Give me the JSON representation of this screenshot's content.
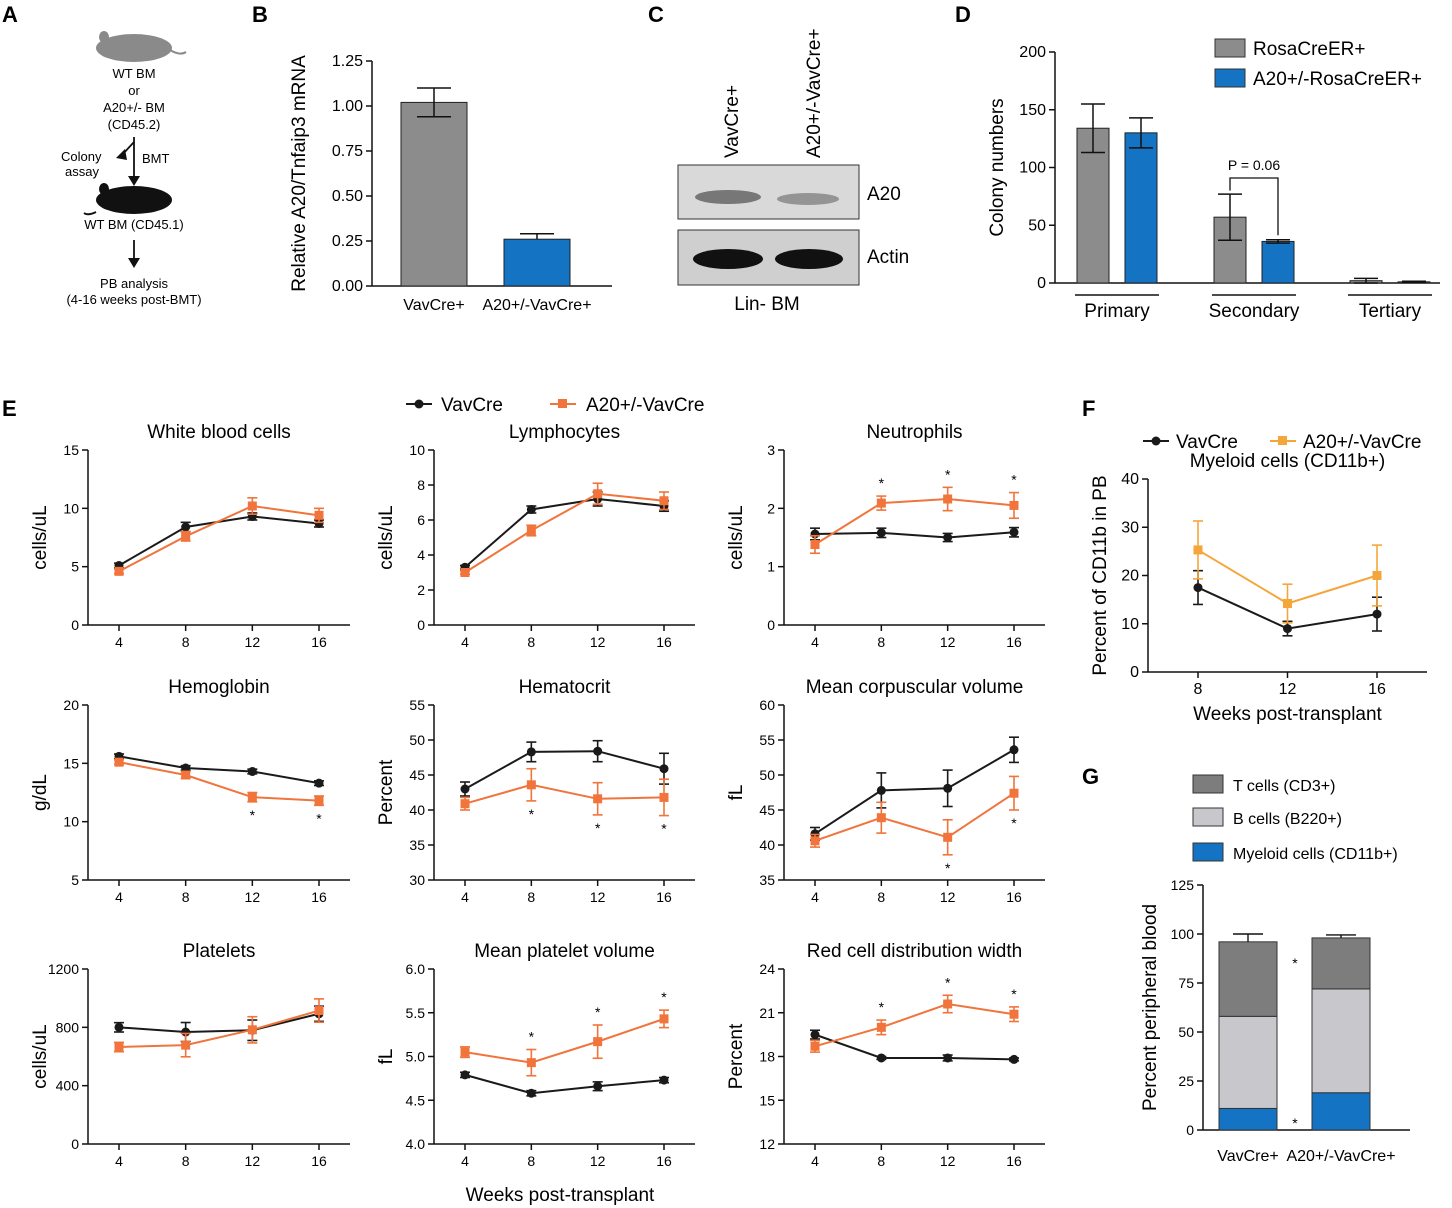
{
  "panels": {
    "A": "A",
    "B": "B",
    "C": "C",
    "D": "D",
    "E": "E",
    "F": "F",
    "G": "G"
  },
  "colors": {
    "vavcre": "#1a1a1a",
    "a20": "#f0743b",
    "a20_f": "#f5a63a",
    "gray": "#8c8c8c",
    "blue": "#1473c2",
    "light_gray": "#c8c8cc",
    "dark_gray": "#7d7d7d"
  },
  "schematic": {
    "donor_lines": [
      "WT BM",
      "or",
      "A20+/- BM",
      "(CD45.2)"
    ],
    "colony_assay": [
      "Colony",
      "assay"
    ],
    "bmt": "BMT",
    "recipient": "WT BM (CD45.1)",
    "pb_lines": [
      "PB analysis",
      "(4-16 weeks post-BMT)"
    ]
  },
  "western": {
    "lane1": "VavCre+",
    "lane2": "A20+/-VavCre+",
    "band1": "A20",
    "band2": "Actin",
    "caption": "Lin- BM"
  },
  "legend_E": {
    "vav": "VavCre",
    "a20": "A20+/-VavCre"
  },
  "legend_F": {
    "vav": "VavCre",
    "a20": "A20+/-VavCre"
  },
  "legend_D": {
    "s1": "RosaCreER+",
    "s2": "A20+/-RosaCreER+"
  },
  "legend_G": {
    "t": "T cells (CD3+)",
    "b": "B cells (B220+)",
    "m": "Myeloid cells (CD11b+)"
  },
  "e_xlabel": "Weeks post-transplant",
  "chart_data": [
    {
      "id": "B",
      "type": "bar",
      "categories": [
        "VavCre+",
        "A20+/-VavCre+"
      ],
      "values": [
        1.02,
        0.26
      ],
      "errors": [
        0.08,
        0.03
      ],
      "ylabel": "Relative A20/Tnfaip3 mRNA",
      "ylim": [
        0,
        1.25
      ],
      "yticks": [
        "0.00",
        "0.25",
        "0.50",
        "0.75",
        "1.00",
        "1.25"
      ]
    },
    {
      "id": "D",
      "type": "bar",
      "groups": [
        "Primary",
        "Secondary",
        "Tertiary"
      ],
      "series": [
        {
          "name": "RosaCreER+",
          "values": [
            134,
            57,
            2
          ],
          "errors": [
            21,
            20,
            2
          ]
        },
        {
          "name": "A20+/-RosaCreER+",
          "values": [
            130,
            36,
            1
          ],
          "errors": [
            13,
            1.5,
            0.5
          ]
        }
      ],
      "ylabel": "Colony numbers",
      "ylim": [
        0,
        200
      ],
      "yticks": [
        "0",
        "50",
        "100",
        "150",
        "200"
      ],
      "annotation": "P = 0.06"
    },
    {
      "id": "E1",
      "type": "line",
      "title": "White blood cells",
      "ylabel": "cells/uL",
      "x": [
        4,
        8,
        12,
        16
      ],
      "ylim": [
        0,
        15
      ],
      "yticks": [
        "0",
        "5",
        "10",
        "15"
      ],
      "series": [
        {
          "name": "VavCre",
          "values": [
            5.1,
            8.4,
            9.3,
            8.7
          ],
          "errors": [
            0.2,
            0.4,
            0.3,
            0.3
          ]
        },
        {
          "name": "A20+/-VavCre",
          "values": [
            4.6,
            7.6,
            10.2,
            9.4
          ],
          "errors": [
            0.2,
            0.4,
            0.7,
            0.6
          ]
        }
      ],
      "stars": []
    },
    {
      "id": "E2",
      "type": "line",
      "title": "Lymphocytes",
      "ylabel": "cells/uL",
      "x": [
        4,
        8,
        12,
        16
      ],
      "ylim": [
        0,
        10
      ],
      "yticks": [
        "0",
        "2",
        "4",
        "6",
        "8",
        "10"
      ],
      "series": [
        {
          "name": "VavCre",
          "values": [
            3.3,
            6.6,
            7.2,
            6.8
          ],
          "errors": [
            0.1,
            0.2,
            0.4,
            0.3
          ]
        },
        {
          "name": "A20+/-VavCre",
          "values": [
            3.0,
            5.4,
            7.5,
            7.1
          ],
          "errors": [
            0.1,
            0.3,
            0.6,
            0.5
          ]
        }
      ],
      "stars": []
    },
    {
      "id": "E3",
      "type": "line",
      "title": "Neutrophils",
      "ylabel": "cells/uL",
      "x": [
        4,
        8,
        12,
        16
      ],
      "ylim": [
        0,
        3
      ],
      "yticks": [
        "0",
        "1",
        "2",
        "3"
      ],
      "series": [
        {
          "name": "VavCre",
          "values": [
            1.56,
            1.58,
            1.5,
            1.59
          ],
          "errors": [
            0.1,
            0.08,
            0.07,
            0.08
          ]
        },
        {
          "name": "A20+/-VavCre",
          "values": [
            1.38,
            2.09,
            2.16,
            2.05
          ],
          "errors": [
            0.15,
            0.12,
            0.2,
            0.22
          ]
        }
      ],
      "stars": [
        {
          "x": 8,
          "side": "top"
        },
        {
          "x": 12,
          "side": "top"
        },
        {
          "x": 16,
          "side": "top"
        }
      ]
    },
    {
      "id": "E4",
      "type": "line",
      "title": "Hemoglobin",
      "ylabel": "g/dL",
      "x": [
        4,
        8,
        12,
        16
      ],
      "ylim": [
        5,
        20
      ],
      "yticks": [
        "5",
        "10",
        "15",
        "20"
      ],
      "series": [
        {
          "name": "VavCre",
          "values": [
            15.6,
            14.6,
            14.3,
            13.3
          ],
          "errors": [
            0.2,
            0.2,
            0.2,
            0.2
          ]
        },
        {
          "name": "A20+/-VavCre",
          "values": [
            15.1,
            14.0,
            12.1,
            11.8
          ],
          "errors": [
            0.2,
            0.3,
            0.4,
            0.4
          ]
        }
      ],
      "stars": [
        {
          "x": 12,
          "side": "bottom"
        },
        {
          "x": 16,
          "side": "bottom"
        }
      ]
    },
    {
      "id": "E5",
      "type": "line",
      "title": "Hematocrit",
      "ylabel": "Percent",
      "x": [
        4,
        8,
        12,
        16
      ],
      "ylim": [
        30,
        55
      ],
      "yticks": [
        "30",
        "35",
        "40",
        "45",
        "50",
        "55"
      ],
      "series": [
        {
          "name": "VavCre",
          "values": [
            43,
            48.3,
            48.4,
            45.9
          ],
          "errors": [
            1.0,
            1.4,
            1.5,
            2.2
          ]
        },
        {
          "name": "A20+/-VavCre",
          "values": [
            40.9,
            43.6,
            41.6,
            41.8
          ],
          "errors": [
            0.9,
            2.3,
            2.3,
            2.6
          ]
        }
      ],
      "stars": [
        {
          "x": 8,
          "side": "bottom"
        },
        {
          "x": 12,
          "side": "bottom"
        },
        {
          "x": 16,
          "side": "bottom"
        }
      ]
    },
    {
      "id": "E6",
      "type": "line",
      "title": "Mean corpuscular volume",
      "ylabel": "fL",
      "x": [
        4,
        8,
        12,
        16
      ],
      "ylim": [
        35,
        60
      ],
      "yticks": [
        "35",
        "40",
        "45",
        "50",
        "55",
        "60"
      ],
      "series": [
        {
          "name": "VavCre",
          "values": [
            41.6,
            47.8,
            48.1,
            53.6
          ],
          "errors": [
            0.9,
            2.5,
            2.6,
            1.8
          ]
        },
        {
          "name": "A20+/-VavCre",
          "values": [
            40.6,
            43.9,
            41.1,
            47.4
          ],
          "errors": [
            0.9,
            2.2,
            2.5,
            2.4
          ]
        }
      ],
      "stars": [
        {
          "x": 12,
          "side": "bottom"
        },
        {
          "x": 16,
          "side": "bottom"
        }
      ]
    },
    {
      "id": "E7",
      "type": "line",
      "title": "Platelets",
      "ylabel": "cells/uL",
      "x": [
        4,
        8,
        12,
        16
      ],
      "ylim": [
        0,
        1200
      ],
      "yticks": [
        "0",
        "400",
        "800",
        "1200"
      ],
      "series": [
        {
          "name": "VavCre",
          "values": [
            800,
            768,
            780,
            893
          ],
          "errors": [
            32,
            65,
            70,
            52
          ]
        },
        {
          "name": "A20+/-VavCre",
          "values": [
            665,
            678,
            783,
            915
          ],
          "errors": [
            32,
            80,
            90,
            80
          ]
        }
      ],
      "stars": []
    },
    {
      "id": "E8",
      "type": "line",
      "title": "Mean platelet volume",
      "ylabel": "fL",
      "x": [
        4,
        8,
        12,
        16
      ],
      "ylim": [
        4,
        6
      ],
      "yticks": [
        "4.0",
        "4.5",
        "5.0",
        "5.5",
        "6.0"
      ],
      "series": [
        {
          "name": "VavCre",
          "values": [
            4.79,
            4.58,
            4.66,
            4.73
          ],
          "errors": [
            0.03,
            0.03,
            0.05,
            0.03
          ]
        },
        {
          "name": "A20+/-VavCre",
          "values": [
            5.05,
            4.93,
            5.17,
            5.43
          ],
          "errors": [
            0.06,
            0.15,
            0.19,
            0.1
          ]
        }
      ],
      "stars": [
        {
          "x": 8,
          "side": "top"
        },
        {
          "x": 12,
          "side": "top"
        },
        {
          "x": 16,
          "side": "top"
        }
      ]
    },
    {
      "id": "E9",
      "type": "line",
      "title": "Red cell distribution width",
      "ylabel": "Percent",
      "x": [
        4,
        8,
        12,
        16
      ],
      "ylim": [
        12,
        24
      ],
      "yticks": [
        "12",
        "15",
        "18",
        "21",
        "24"
      ],
      "series": [
        {
          "name": "VavCre",
          "values": [
            19.5,
            17.9,
            17.9,
            17.8
          ],
          "errors": [
            0.3,
            0.1,
            0.2,
            0.1
          ]
        },
        {
          "name": "A20+/-VavCre",
          "values": [
            18.7,
            20.0,
            21.6,
            20.9
          ],
          "errors": [
            0.4,
            0.5,
            0.6,
            0.5
          ]
        }
      ],
      "stars": [
        {
          "x": 8,
          "side": "top"
        },
        {
          "x": 12,
          "side": "top"
        },
        {
          "x": 16,
          "side": "top"
        }
      ]
    },
    {
      "id": "F",
      "type": "line",
      "title": "Myeloid cells (CD11b+)",
      "ylabel": "Percent of CD11b in PB",
      "xlabel": "Weeks post-transplant",
      "x": [
        8,
        12,
        16
      ],
      "ylim": [
        0,
        40
      ],
      "yticks": [
        "0",
        "10",
        "20",
        "30",
        "40"
      ],
      "series": [
        {
          "name": "VavCre",
          "values": [
            17.5,
            9,
            12
          ],
          "errors": [
            3.5,
            1.5,
            3.5
          ]
        },
        {
          "name": "A20+/-VavCre",
          "values": [
            25.3,
            14.2,
            20
          ],
          "errors": [
            6,
            4,
            6.3
          ]
        }
      ]
    },
    {
      "id": "G",
      "type": "bar",
      "stacked": true,
      "categories": [
        "VavCre+",
        "A20+/-VavCre+"
      ],
      "series": [
        {
          "name": "Myeloid cells (CD11b+)",
          "values": [
            11,
            19
          ],
          "errors": [
            2,
            3
          ]
        },
        {
          "name": "B cells (B220+)",
          "values": [
            47,
            53
          ],
          "errors": [
            4,
            3
          ]
        },
        {
          "name": "T cells (CD3+)",
          "values": [
            38,
            26
          ],
          "errors": [
            4,
            1.5
          ]
        }
      ],
      "ylabel": "Percent peripheral blood",
      "ylim": [
        0,
        125
      ],
      "yticks": [
        "0",
        "25",
        "50",
        "75",
        "100",
        "125"
      ]
    }
  ]
}
